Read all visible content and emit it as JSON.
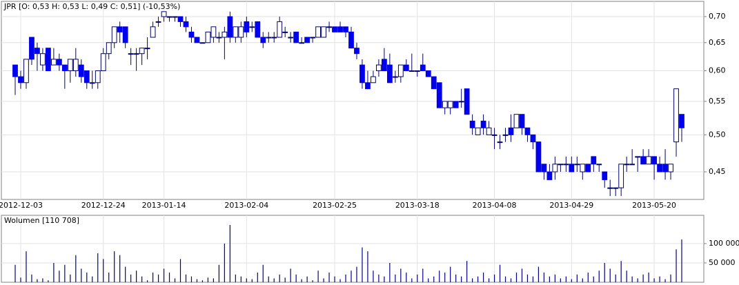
{
  "chart_data": [
    {
      "type": "candlestick",
      "title": "JPR [O: 0,53  H: 0,53  L: 0,49  C: 0,51] (-10,53%)",
      "categories": [
        null,
        "2012-12-03",
        null,
        null,
        null,
        null,
        null,
        null,
        null,
        null,
        null,
        null,
        null,
        null,
        null,
        null,
        "2012-12-24",
        null,
        null,
        null,
        null,
        null,
        null,
        null,
        null,
        null,
        null,
        "2013-01-14",
        null,
        null,
        null,
        null,
        null,
        null,
        null,
        null,
        null,
        null,
        null,
        null,
        null,
        null,
        "2013-02-04",
        null,
        null,
        null,
        null,
        null,
        null,
        null,
        null,
        null,
        null,
        null,
        null,
        null,
        null,
        null,
        "2013-02-25",
        null,
        null,
        null,
        null,
        null,
        null,
        null,
        null,
        null,
        null,
        null,
        null,
        null,
        null,
        "2013-03-18",
        null,
        null,
        null,
        null,
        null,
        null,
        null,
        null,
        null,
        null,
        null,
        null,
        null,
        "2013-04-08",
        null,
        null,
        null,
        null,
        null,
        null,
        null,
        null,
        null,
        null,
        null,
        null,
        null,
        "2013-04-29",
        null,
        null,
        null,
        null,
        null,
        null,
        null,
        null,
        null,
        null,
        null,
        null,
        null,
        null,
        "2013-05-20",
        null,
        null,
        null,
        null,
        null
      ],
      "open": [
        0.61,
        0.59,
        0.58,
        0.66,
        0.64,
        0.61,
        0.64,
        0.61,
        0.62,
        0.61,
        0.6,
        0.6,
        0.61,
        0.6,
        0.58,
        0.58,
        0.6,
        0.63,
        0.65,
        0.68,
        0.68,
        0.63,
        0.63,
        0.63,
        0.64,
        0.66,
        0.69,
        0.7,
        0.7,
        0.7,
        0.7,
        0.69,
        0.67,
        0.66,
        0.65,
        0.65,
        0.66,
        0.66,
        0.66,
        0.7,
        0.66,
        0.66,
        0.69,
        0.68,
        0.69,
        0.66,
        0.66,
        0.66,
        0.66,
        0.67,
        0.66,
        0.67,
        0.65,
        0.66,
        0.66,
        0.66,
        0.66,
        0.68,
        0.68,
        0.68,
        0.68,
        0.67,
        0.64,
        0.61,
        0.58,
        0.58,
        0.6,
        0.62,
        0.61,
        0.59,
        0.59,
        0.61,
        0.6,
        0.6,
        0.61,
        0.6,
        0.59,
        0.58,
        0.54,
        0.54,
        0.55,
        0.55,
        0.57,
        0.52,
        0.5,
        0.52,
        0.5,
        0.5,
        0.49,
        0.5,
        0.51,
        0.51,
        0.53,
        0.51,
        0.5,
        0.49,
        0.46,
        0.45,
        0.45,
        0.46,
        0.46,
        0.46,
        0.46,
        0.45,
        0.46,
        0.47,
        0.46,
        0.45,
        0.43,
        0.43,
        0.43,
        0.46,
        0.46,
        0.47,
        0.47,
        0.46,
        0.47,
        0.46,
        0.46,
        0.45,
        0.49,
        0.53
      ],
      "high": [
        0.61,
        0.6,
        0.62,
        0.66,
        0.65,
        0.64,
        0.64,
        0.64,
        0.63,
        0.61,
        0.62,
        0.64,
        0.62,
        0.6,
        0.6,
        0.6,
        0.64,
        0.65,
        0.68,
        0.69,
        0.68,
        0.64,
        0.64,
        0.64,
        0.66,
        0.69,
        0.7,
        0.71,
        0.7,
        0.7,
        0.7,
        0.7,
        0.68,
        0.66,
        0.65,
        0.67,
        0.68,
        0.67,
        0.68,
        0.71,
        0.68,
        0.69,
        0.7,
        0.69,
        0.69,
        0.67,
        0.67,
        0.67,
        0.7,
        0.68,
        0.67,
        0.67,
        0.66,
        0.66,
        0.66,
        0.68,
        0.68,
        0.69,
        0.68,
        0.69,
        0.68,
        0.68,
        0.65,
        0.62,
        0.6,
        0.6,
        0.62,
        0.64,
        0.63,
        0.6,
        0.61,
        0.62,
        0.63,
        0.6,
        0.63,
        0.6,
        0.59,
        0.58,
        0.55,
        0.55,
        0.55,
        0.57,
        0.57,
        0.53,
        0.51,
        0.53,
        0.52,
        0.51,
        0.5,
        0.51,
        0.53,
        0.53,
        0.53,
        0.51,
        0.5,
        0.49,
        0.46,
        0.46,
        0.47,
        0.46,
        0.47,
        0.47,
        0.47,
        0.46,
        0.46,
        0.47,
        0.46,
        0.45,
        0.44,
        0.43,
        0.46,
        0.47,
        0.48,
        0.47,
        0.48,
        0.48,
        0.47,
        0.47,
        0.48,
        0.46,
        0.57,
        0.53
      ],
      "low": [
        0.56,
        0.57,
        0.57,
        0.61,
        0.6,
        0.6,
        0.6,
        0.61,
        0.6,
        0.57,
        0.58,
        0.59,
        0.58,
        0.57,
        0.57,
        0.57,
        0.6,
        0.62,
        0.64,
        0.65,
        0.64,
        0.61,
        0.6,
        0.61,
        0.62,
        0.66,
        0.68,
        0.69,
        0.69,
        0.69,
        0.68,
        0.67,
        0.65,
        0.65,
        0.65,
        0.65,
        0.65,
        0.65,
        0.62,
        0.65,
        0.65,
        0.65,
        0.66,
        0.67,
        0.66,
        0.64,
        0.65,
        0.65,
        0.66,
        0.66,
        0.65,
        0.65,
        0.65,
        0.65,
        0.65,
        0.66,
        0.66,
        0.67,
        0.67,
        0.67,
        0.66,
        0.64,
        0.62,
        0.57,
        0.57,
        0.58,
        0.59,
        0.6,
        0.58,
        0.58,
        0.58,
        0.6,
        0.6,
        0.59,
        0.6,
        0.59,
        0.57,
        0.54,
        0.53,
        0.53,
        0.54,
        0.54,
        0.53,
        0.5,
        0.5,
        0.5,
        0.5,
        0.48,
        0.48,
        0.49,
        0.49,
        0.51,
        0.5,
        0.49,
        0.48,
        0.45,
        0.44,
        0.44,
        0.44,
        0.45,
        0.45,
        0.45,
        0.45,
        0.44,
        0.45,
        0.45,
        0.45,
        0.43,
        0.42,
        0.42,
        0.42,
        0.45,
        0.46,
        0.45,
        0.46,
        0.46,
        0.44,
        0.45,
        0.44,
        0.44,
        0.47,
        0.49
      ],
      "close": [
        0.59,
        0.58,
        0.62,
        0.62,
        0.63,
        0.63,
        0.6,
        0.62,
        0.61,
        0.6,
        0.62,
        0.62,
        0.59,
        0.58,
        0.58,
        0.6,
        0.63,
        0.65,
        0.68,
        0.67,
        0.65,
        0.63,
        0.63,
        0.64,
        0.64,
        0.68,
        0.69,
        0.71,
        0.7,
        0.7,
        0.69,
        0.68,
        0.66,
        0.65,
        0.65,
        0.67,
        0.68,
        0.66,
        0.67,
        0.66,
        0.68,
        0.68,
        0.67,
        0.68,
        0.66,
        0.65,
        0.66,
        0.66,
        0.69,
        0.67,
        0.66,
        0.65,
        0.65,
        0.65,
        0.66,
        0.68,
        0.68,
        0.68,
        0.67,
        0.67,
        0.67,
        0.64,
        0.63,
        0.58,
        0.57,
        0.59,
        0.61,
        0.6,
        0.58,
        0.59,
        0.61,
        0.6,
        0.6,
        0.6,
        0.6,
        0.59,
        0.57,
        0.54,
        0.55,
        0.55,
        0.54,
        0.55,
        0.53,
        0.51,
        0.51,
        0.51,
        0.51,
        0.5,
        0.49,
        0.5,
        0.5,
        0.53,
        0.51,
        0.5,
        0.49,
        0.45,
        0.45,
        0.44,
        0.46,
        0.46,
        0.46,
        0.45,
        0.46,
        0.46,
        0.45,
        0.46,
        0.46,
        0.44,
        0.43,
        0.43,
        0.46,
        0.46,
        0.46,
        0.47,
        0.46,
        0.47,
        0.46,
        0.45,
        0.45,
        0.46,
        0.57,
        0.51
      ],
      "up_color": "#ffffff",
      "down_color": "#0000ee",
      "wick_color": "#000066",
      "ylim": [
        0.416,
        0.731
      ],
      "log_scale": true,
      "grid": true,
      "yticks": [
        {
          "value": 0.45,
          "label": "0,45"
        },
        {
          "value": 0.5,
          "label": "0,50"
        },
        {
          "value": 0.55,
          "label": "0,55"
        },
        {
          "value": 0.6,
          "label": "0,60"
        },
        {
          "value": 0.65,
          "label": "0,65"
        },
        {
          "value": 0.7,
          "label": "0,70"
        }
      ]
    },
    {
      "type": "bar",
      "title": "Wolumen [110 708]",
      "color": "#000080",
      "values": [
        45000,
        12000,
        80000,
        20000,
        8000,
        10000,
        5000,
        50000,
        30000,
        45000,
        20000,
        70000,
        35000,
        25000,
        15000,
        75000,
        60000,
        25000,
        80000,
        70000,
        40000,
        20000,
        30000,
        15000,
        5000,
        25000,
        20000,
        35000,
        25000,
        10000,
        60000,
        20000,
        15000,
        8000,
        5000,
        12000,
        10000,
        45000,
        100000,
        148000,
        20000,
        15000,
        10000,
        8000,
        25000,
        45000,
        15000,
        10000,
        20000,
        12000,
        35000,
        20000,
        8000,
        15000,
        5000,
        30000,
        10000,
        25000,
        15000,
        8000,
        20000,
        30000,
        40000,
        90000,
        80000,
        30000,
        20000,
        15000,
        50000,
        20000,
        35000,
        25000,
        10000,
        20000,
        35000,
        10000,
        15000,
        30000,
        25000,
        40000,
        20000,
        15000,
        55000,
        10000,
        15000,
        25000,
        10000,
        20000,
        45000,
        15000,
        10000,
        25000,
        35000,
        20000,
        15000,
        40000,
        25000,
        15000,
        20000,
        10000,
        15000,
        8000,
        20000,
        10000,
        25000,
        15000,
        30000,
        50000,
        35000,
        20000,
        55000,
        30000,
        15000,
        10000,
        20000,
        25000,
        10000,
        15000,
        8000,
        20000,
        85000,
        110708
      ],
      "ylim": [
        0,
        173000
      ],
      "grid": true,
      "yticks": [
        {
          "value": 50000,
          "label": "50 000"
        },
        {
          "value": 100000,
          "label": "100 000"
        }
      ]
    }
  ]
}
